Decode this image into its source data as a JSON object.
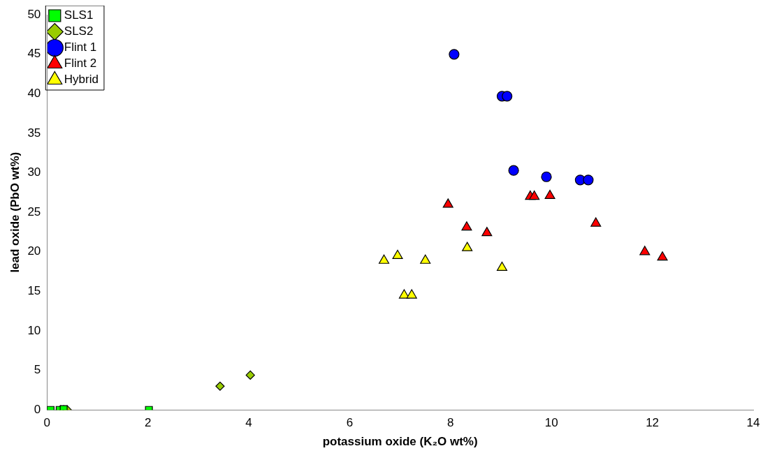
{
  "chart_data": {
    "type": "scatter",
    "xlabel": "potassium oxide (K₂O wt%)",
    "ylabel": "lead oxide (PbO wt%)",
    "xlim": [
      0,
      14
    ],
    "ylim": [
      0,
      50
    ],
    "xticks": [
      0,
      2,
      4,
      6,
      8,
      10,
      12,
      14
    ],
    "yticks": [
      0,
      5,
      10,
      15,
      20,
      25,
      30,
      35,
      40,
      45,
      50
    ],
    "grid": false,
    "legend": "top left",
    "series": [
      {
        "name": "SLS1",
        "color": "#00ff00",
        "marker": "square",
        "x": [
          0.07,
          0.25,
          0.33,
          2.02
        ],
        "values": [
          0,
          0,
          0.1,
          0
        ]
      },
      {
        "name": "SLS2",
        "color": "#99cc00",
        "marker": "diamond",
        "x": [
          0.27,
          0.33,
          0.4,
          3.43,
          4.03
        ],
        "values": [
          0,
          0,
          0,
          3.0,
          4.4
        ]
      },
      {
        "name": "Flint 1",
        "color": "#0000ff",
        "marker": "circle",
        "x": [
          8.07,
          9.02,
          9.12,
          9.25,
          9.9,
          10.57,
          10.73
        ],
        "values": [
          45,
          39.7,
          39.7,
          30.3,
          29.5,
          29.1,
          29.1
        ]
      },
      {
        "name": "Flint 2",
        "color": "#ff0000",
        "marker": "triangle",
        "x": [
          7.95,
          8.32,
          8.72,
          9.58,
          9.66,
          9.97,
          10.88,
          11.85,
          12.2
        ],
        "values": [
          26,
          23.1,
          22.4,
          27,
          27,
          27.1,
          23.6,
          20,
          19.3
        ]
      },
      {
        "name": "Hybrid",
        "color": "#ffff00",
        "marker": "triangle",
        "x": [
          6.68,
          6.95,
          7.08,
          7.23,
          7.5,
          8.33,
          9.02
        ],
        "values": [
          18.9,
          19.5,
          14.5,
          14.5,
          18.9,
          20.5,
          18
        ]
      }
    ]
  }
}
